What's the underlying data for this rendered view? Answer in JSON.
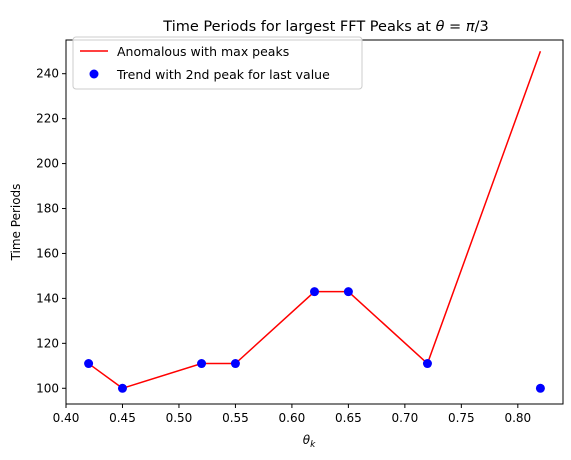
{
  "chart_data": {
    "type": "line",
    "title": "Time Periods for largest FFT Peaks at θ = π/3",
    "title_parts": {
      "prefix": "Time Periods for largest FFT Peaks at ",
      "theta": "θ",
      "equals": " = ",
      "pi": "π",
      "suffix": "/3"
    },
    "xlabel": "θ",
    "xlabel_sub": "k",
    "ylabel": "Time Periods",
    "xlim": [
      0.4,
      0.84
    ],
    "ylim": [
      93,
      255
    ],
    "xticks": [
      "0.40",
      "0.45",
      "0.50",
      "0.55",
      "0.60",
      "0.65",
      "0.70",
      "0.75",
      "0.80"
    ],
    "yticks": [
      "100",
      "120",
      "140",
      "160",
      "180",
      "200",
      "220",
      "240"
    ],
    "grid": false,
    "legend_position": "upper-left",
    "series": [
      {
        "name": "Anomalous with max peaks",
        "style": "line",
        "color": "#ff0000",
        "x": [
          0.42,
          0.45,
          0.52,
          0.55,
          0.62,
          0.65,
          0.72,
          0.82
        ],
        "y": [
          111,
          100,
          111,
          111,
          143,
          143,
          111,
          250
        ]
      },
      {
        "name": "Trend with 2nd peak for last value",
        "style": "marker",
        "color": "#0000ff",
        "x": [
          0.42,
          0.45,
          0.52,
          0.55,
          0.62,
          0.65,
          0.72,
          0.82
        ],
        "y": [
          111,
          100,
          111,
          111,
          143,
          143,
          111,
          100
        ]
      }
    ]
  }
}
